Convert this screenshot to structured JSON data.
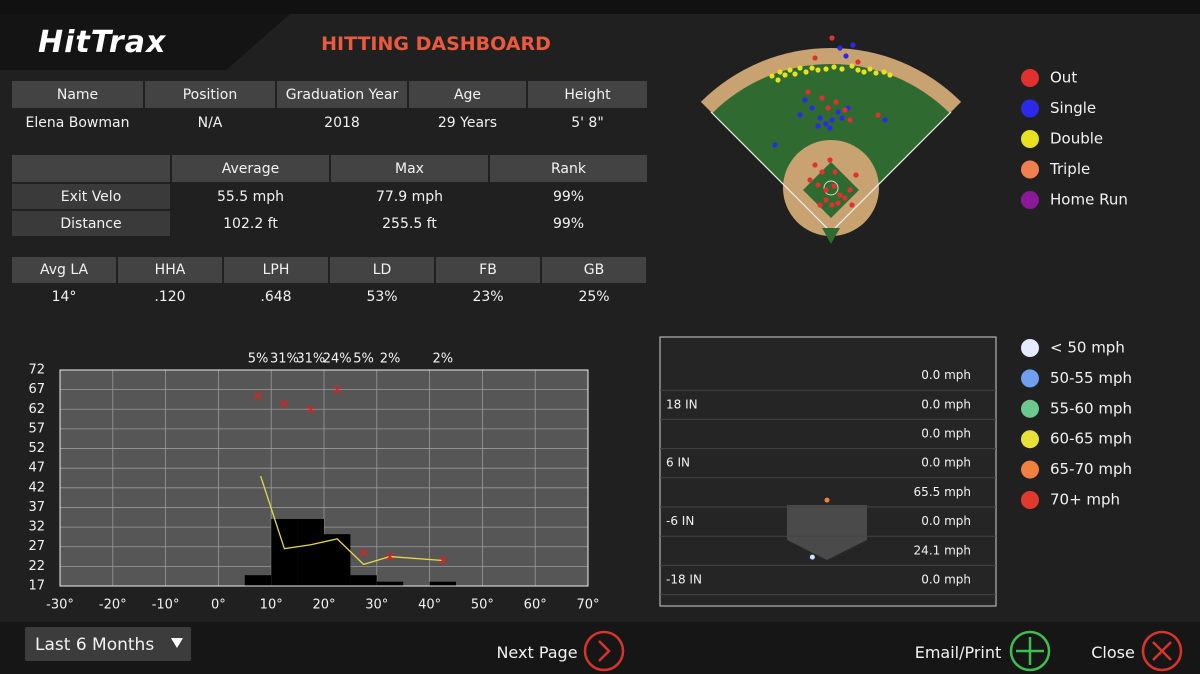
{
  "header": {
    "logo": "HitTrax",
    "title": "HITTING DASHBOARD"
  },
  "player": {
    "headers": [
      "Name",
      "Position",
      "Graduation Year",
      "Age",
      "Height"
    ],
    "values": [
      "Elena Bowman",
      "N/A",
      "2018",
      "29 Years",
      "5' 8\""
    ]
  },
  "stats": {
    "headers": [
      "Average",
      "Max",
      "Rank"
    ],
    "rows": [
      [
        "Exit Velo",
        "55.5 mph",
        "77.9 mph",
        "99%"
      ],
      [
        "Distance",
        "102.2 ft",
        "255.5 ft",
        "99%"
      ]
    ]
  },
  "metrics": {
    "headers": [
      "Avg LA",
      "HHA",
      "LPH",
      "LD",
      "FB",
      "GB"
    ],
    "values": [
      "14°",
      ".120",
      ".648",
      "53%",
      "23%",
      "25%"
    ]
  },
  "spray": {
    "legend": [
      {
        "name": "Out",
        "color": "#e03030"
      },
      {
        "name": "Single",
        "color": "#2a2ae8"
      },
      {
        "name": "Double",
        "color": "#e8e020"
      },
      {
        "name": "Triple",
        "color": "#f08050"
      },
      {
        "name": "Home Run",
        "color": "#8a1a9a"
      }
    ],
    "hits": [
      {
        "x": -118,
        "y": 312,
        "result": "Double"
      },
      {
        "x": -102,
        "y": 320,
        "result": "Double"
      },
      {
        "x": -92,
        "y": 314,
        "result": "Double"
      },
      {
        "x": -82,
        "y": 324,
        "result": "Double"
      },
      {
        "x": -72,
        "y": 316,
        "result": "Double"
      },
      {
        "x": -62,
        "y": 328,
        "result": "Double"
      },
      {
        "x": -50,
        "y": 320,
        "result": "Double"
      },
      {
        "x": -38,
        "y": 328,
        "result": "Double"
      },
      {
        "x": -26,
        "y": 324,
        "result": "Double"
      },
      {
        "x": -10,
        "y": 326,
        "result": "Double"
      },
      {
        "x": 6,
        "y": 330,
        "result": "Double"
      },
      {
        "x": 22,
        "y": 326,
        "result": "Double"
      },
      {
        "x": 42,
        "y": 332,
        "result": "Double"
      },
      {
        "x": 54,
        "y": 324,
        "result": "Double"
      },
      {
        "x": 66,
        "y": 320,
        "result": "Double"
      },
      {
        "x": 78,
        "y": 326,
        "result": "Double"
      },
      {
        "x": 90,
        "y": 318,
        "result": "Double"
      },
      {
        "x": 106,
        "y": 320,
        "result": "Double"
      },
      {
        "x": 118,
        "y": 314,
        "result": "Double"
      },
      {
        "x": -106,
        "y": 304,
        "result": "Double"
      },
      {
        "x": 2,
        "y": 388,
        "result": "Out"
      },
      {
        "x": -32,
        "y": 348,
        "result": "Out"
      },
      {
        "x": 54,
        "y": 340,
        "result": "Out"
      },
      {
        "x": 18,
        "y": 368,
        "result": "Single"
      },
      {
        "x": 44,
        "y": 374,
        "result": "Single"
      },
      {
        "x": 30,
        "y": 352,
        "result": "Single"
      },
      {
        "x": -52,
        "y": 264,
        "result": "Single"
      },
      {
        "x": -38,
        "y": 248,
        "result": "Single"
      },
      {
        "x": -22,
        "y": 228,
        "result": "Single"
      },
      {
        "x": -10,
        "y": 216,
        "result": "Single"
      },
      {
        "x": 2,
        "y": 224,
        "result": "Single"
      },
      {
        "x": 14,
        "y": 240,
        "result": "Single"
      },
      {
        "x": -2,
        "y": 208,
        "result": "Single"
      },
      {
        "x": -26,
        "y": 212,
        "result": "Single"
      },
      {
        "x": 22,
        "y": 228,
        "result": "Single"
      },
      {
        "x": -112,
        "y": 174,
        "result": "Single"
      },
      {
        "x": 108,
        "y": 224,
        "result": "Single"
      },
      {
        "x": -62,
        "y": 234,
        "result": "Single"
      },
      {
        "x": 34,
        "y": 248,
        "result": "Single"
      },
      {
        "x": -46,
        "y": 280,
        "result": "Out"
      },
      {
        "x": -18,
        "y": 268,
        "result": "Out"
      },
      {
        "x": 10,
        "y": 260,
        "result": "Out"
      },
      {
        "x": 28,
        "y": 244,
        "result": "Out"
      },
      {
        "x": -6,
        "y": 248,
        "result": "Out"
      },
      {
        "x": 94,
        "y": 234,
        "result": "Out"
      },
      {
        "x": 38,
        "y": 224,
        "result": "Out"
      },
      {
        "x": -32,
        "y": 134,
        "result": "Out"
      },
      {
        "x": -18,
        "y": 120,
        "result": "Out"
      },
      {
        "x": -2,
        "y": 144,
        "result": "Out"
      },
      {
        "x": -26,
        "y": 94,
        "result": "Out"
      },
      {
        "x": -10,
        "y": 84,
        "result": "Out"
      },
      {
        "x": 6,
        "y": 92,
        "result": "Out"
      },
      {
        "x": 18,
        "y": 74,
        "result": "Out"
      },
      {
        "x": -10,
        "y": 64,
        "result": "Out"
      },
      {
        "x": 2,
        "y": 54,
        "result": "Out"
      },
      {
        "x": 14,
        "y": 58,
        "result": "Out"
      },
      {
        "x": 28,
        "y": 68,
        "result": "Out"
      },
      {
        "x": -22,
        "y": 54,
        "result": "Out"
      },
      {
        "x": 38,
        "y": 84,
        "result": "Out"
      },
      {
        "x": -42,
        "y": 104,
        "result": "Out"
      },
      {
        "x": 8,
        "y": 120,
        "result": "Out"
      },
      {
        "x": 42,
        "y": 54,
        "result": "Out"
      },
      {
        "x": 50,
        "y": 114,
        "result": "Out"
      }
    ]
  },
  "chart_data": {
    "type": "combo",
    "xlim": [
      -30,
      70
    ],
    "xticks": [
      {
        "value": -30,
        "label": "-30°"
      },
      {
        "value": -20,
        "label": "-20°"
      },
      {
        "value": -10,
        "label": "-10°"
      },
      {
        "value": 0,
        "label": "0°"
      },
      {
        "value": 10,
        "label": "10°"
      },
      {
        "value": 20,
        "label": "20°"
      },
      {
        "value": 30,
        "label": "30°"
      },
      {
        "value": 40,
        "label": "40°"
      },
      {
        "value": 50,
        "label": "50°"
      },
      {
        "value": 60,
        "label": "60°"
      },
      {
        "value": 70,
        "label": "70°"
      }
    ],
    "ylim": [
      17,
      72
    ],
    "yticks": [
      17,
      22,
      27,
      32,
      37,
      42,
      47,
      52,
      57,
      62,
      67,
      72
    ],
    "y2lim": [
      0,
      100
    ],
    "grid": true,
    "series": [
      {
        "type": "histogram",
        "axis": "y2",
        "color": "#000000",
        "bins": [
          5,
          10,
          15,
          20,
          25,
          30,
          35,
          40,
          45
        ],
        "values": [
          5,
          31,
          31,
          24,
          5,
          2,
          0,
          2
        ],
        "value_labels": [
          "5%",
          "31%",
          "31%",
          "24%",
          "5%",
          "2%",
          null,
          "2%"
        ]
      },
      {
        "type": "line",
        "color": "#e6d84a",
        "x": [
          8,
          12.5,
          17.5,
          22.5,
          27.5,
          32.5,
          42.5
        ],
        "values": [
          45,
          26.5,
          27.5,
          29,
          22.5,
          24.5,
          23.5
        ]
      },
      {
        "type": "scatter",
        "color": "#e02020",
        "x": [
          7.5,
          12.5,
          17.5,
          22.5,
          27.5,
          32.5,
          42.5
        ],
        "values": [
          65.5,
          63.5,
          62,
          67,
          25.5,
          24.5,
          23.5
        ]
      }
    ]
  },
  "strike_zone": {
    "rows": [
      {
        "speed": "0.0 mph"
      },
      {
        "label": "18 IN",
        "speed": "0.0 mph"
      },
      {
        "speed": "0.0 mph"
      },
      {
        "label": "6 IN",
        "speed": "0.0 mph"
      },
      {
        "speed": "65.5 mph"
      },
      {
        "label": "-6 IN",
        "speed": "0.0 mph"
      },
      {
        "speed": "24.1 mph"
      },
      {
        "label": "-18 IN",
        "speed": "0.0 mph"
      }
    ],
    "pitches": [
      {
        "x": 0,
        "y": -1.6,
        "color": "#f08040"
      },
      {
        "x": -3,
        "y": -13.3,
        "color": "#cfe0ff"
      }
    ],
    "legend": [
      {
        "name": "< 50 mph",
        "color": "#e6eaff"
      },
      {
        "name": "50-55 mph",
        "color": "#6fa0f0"
      },
      {
        "name": "55-60 mph",
        "color": "#6cc88f"
      },
      {
        "name": "60-65 mph",
        "color": "#e8e03a"
      },
      {
        "name": "65-70 mph",
        "color": "#f08040"
      },
      {
        "name": "70+ mph",
        "color": "#e03a2e"
      }
    ]
  },
  "footer": {
    "range": "Last 6 Months",
    "next": "Next Page",
    "email": "Email/Print",
    "close": "Close"
  }
}
